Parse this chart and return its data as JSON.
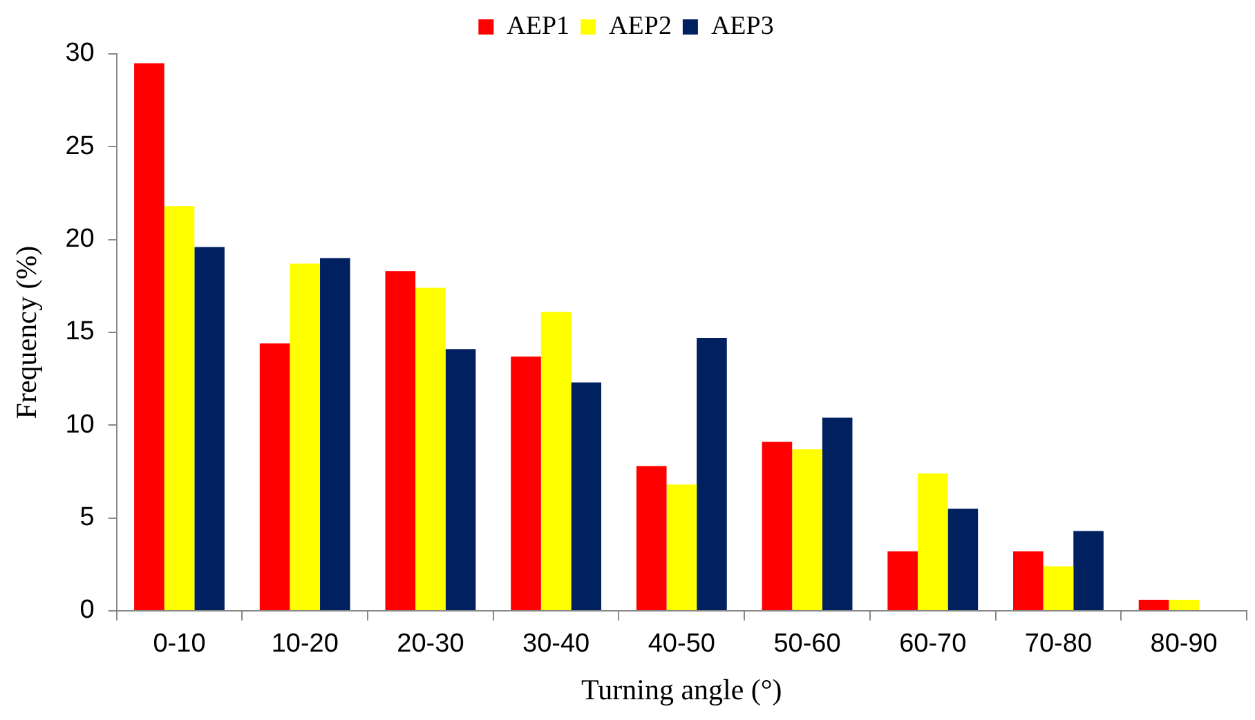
{
  "chart_data": {
    "type": "bar",
    "xlabel": "Turning angle (°)",
    "ylabel": "Frequency (%)",
    "categories": [
      "0-10",
      "10-20",
      "20-30",
      "30-40",
      "40-50",
      "50-60",
      "60-70",
      "70-80",
      "80-90"
    ],
    "series": [
      {
        "name": "AEP1",
        "color": "#ff0000",
        "values": [
          29.5,
          14.4,
          18.3,
          13.7,
          7.8,
          9.1,
          3.2,
          3.2,
          0.6
        ]
      },
      {
        "name": "AEP2",
        "color": "#ffff00",
        "values": [
          21.8,
          18.7,
          17.4,
          16.1,
          6.8,
          8.7,
          7.4,
          2.4,
          0.6
        ]
      },
      {
        "name": "AEP3",
        "color": "#002060",
        "values": [
          19.6,
          19.0,
          14.1,
          12.3,
          14.7,
          10.4,
          5.5,
          4.3,
          0
        ]
      }
    ],
    "ylim": [
      0,
      30
    ],
    "yticks": [
      0,
      5,
      10,
      15,
      20,
      25,
      30
    ],
    "grid": false,
    "legend": "top"
  }
}
